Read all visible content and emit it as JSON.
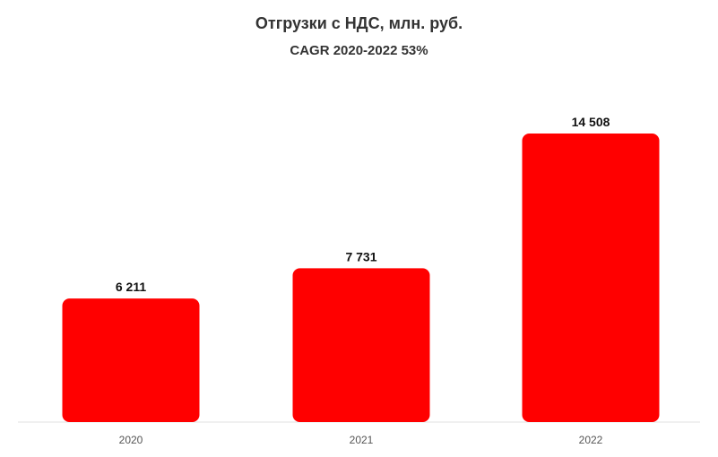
{
  "chart_data": {
    "type": "bar",
    "title": "Отгрузки с НДС, млн. руб.",
    "subtitle": "CAGR 2020-2022 53%",
    "categories": [
      "2020",
      "2021",
      "2022"
    ],
    "values": [
      6211,
      7731,
      14508
    ],
    "value_labels": [
      "6 211",
      "7 731",
      "14 508"
    ],
    "xlabel": "",
    "ylabel": "",
    "ylim": [
      0,
      14508
    ],
    "grid": false,
    "legend": "none",
    "bar_color": "#ff0000",
    "axis_color": "#e0e0e0"
  }
}
